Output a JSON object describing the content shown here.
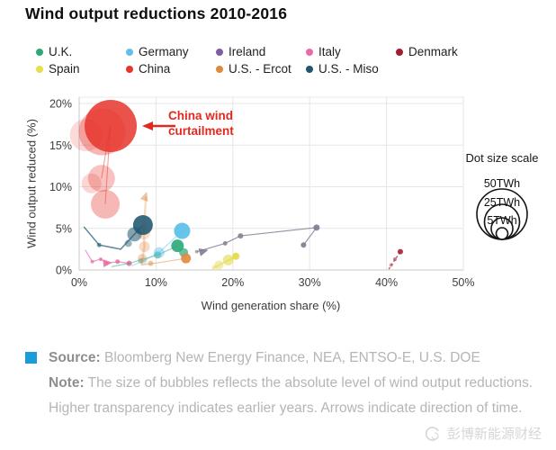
{
  "title": "Wind output reductions 2010-2016",
  "legend": {
    "rows": [
      [
        {
          "label": "U.K.",
          "color": "#2fa876"
        },
        {
          "label": "Germany",
          "color": "#62c1e5"
        },
        {
          "label": "Ireland",
          "color": "#7d5fa0"
        },
        {
          "label": "Italy",
          "color": "#e56daa"
        },
        {
          "label": "Denmark",
          "color": "#9e1f2e"
        }
      ],
      [
        {
          "label": "Spain",
          "color": "#e6df4a"
        },
        {
          "label": "China",
          "color": "#e6352b"
        },
        {
          "label": "U.S. - Ercot",
          "color": "#e0883e"
        },
        {
          "label": "U.S. - Miso",
          "color": "#20566e"
        }
      ]
    ]
  },
  "chart_data": {
    "type": "scatter",
    "xlabel": "Wind generation share (%)",
    "ylabel": "Wind output reduced (%)",
    "xlim": [
      0,
      50
    ],
    "ylim": [
      0,
      20
    ],
    "grid": true,
    "x_ticks": [
      {
        "v": 0,
        "label": "0%"
      },
      {
        "v": 10,
        "label": "10%"
      },
      {
        "v": 20,
        "label": "20%"
      },
      {
        "v": 30,
        "label": "30%"
      },
      {
        "v": 40,
        "label": "40%"
      },
      {
        "v": 50,
        "label": "50%"
      }
    ],
    "y_ticks": [
      {
        "v": 0,
        "label": "0%"
      },
      {
        "v": 5,
        "label": "5%"
      },
      {
        "v": 10,
        "label": "10%"
      },
      {
        "v": 15,
        "label": "15%"
      },
      {
        "v": 20,
        "label": "20%"
      }
    ],
    "annotation": {
      "line1": "China wind",
      "line2": "curtailment",
      "color": "#e02a20"
    },
    "size_legend": {
      "title": "Dot size scale",
      "entries": [
        {
          "label": "50TWh",
          "r": 28
        },
        {
          "label": "25TWh",
          "r": 19.5
        },
        {
          "label": "5TWh",
          "r": 12
        }
      ],
      "dot_r": 6.5
    },
    "series": [
      {
        "name": "Italy",
        "color": "#e56fa5",
        "trails": [
          {
            "pts": [
              [
                0.8,
                2.4
              ],
              [
                1.7,
                1.0
              ],
              [
                2.8,
                1.3
              ],
              [
                3.6,
                0.8
              ],
              [
                5.0,
                1.0
              ],
              [
                6.5,
                0.8
              ]
            ],
            "w": 1.2,
            "o": 0.7
          }
        ],
        "bubbles": [
          {
            "x": 1.7,
            "y": 1.0,
            "r": 2,
            "o": 0.7
          },
          {
            "x": 2.8,
            "y": 1.3,
            "r": 2,
            "o": 0.75
          },
          {
            "x": 3.6,
            "y": 0.8,
            "r": 2,
            "o": 0.8
          },
          {
            "x": 5.0,
            "y": 1.0,
            "r": 2.5,
            "o": 0.85
          },
          {
            "x": 6.5,
            "y": 0.8,
            "r": 3,
            "o": 0.9
          }
        ],
        "arrows": [
          {
            "x": 4.3,
            "y": 0.9,
            "a": -5,
            "o": 0.85
          }
        ]
      },
      {
        "name": "U.K.",
        "color": "#2aa878",
        "trails": [
          {
            "pts": [
              [
                4.2,
                0.4
              ],
              [
                6.5,
                0.8
              ],
              [
                10.2,
                1.8
              ],
              [
                12.8,
                2.9
              ]
            ],
            "w": 1.2,
            "o": 0.5
          }
        ],
        "bubbles": [
          {
            "x": 12.8,
            "y": 2.9,
            "r": 7,
            "o": 0.9
          },
          {
            "x": 13.6,
            "y": 2.1,
            "r": 5,
            "o": 0.7
          },
          {
            "x": 10.2,
            "y": 1.8,
            "r": 4,
            "o": 0.55
          },
          {
            "x": 8.0,
            "y": 1.1,
            "r": 3,
            "o": 0.4
          }
        ]
      },
      {
        "name": "Germany",
        "color": "#58bfe8",
        "trails": [
          {
            "pts": [
              [
                6.8,
                0.5
              ],
              [
                8.4,
                1.1
              ],
              [
                10.4,
                2.1
              ],
              [
                13.4,
                4.7
              ]
            ],
            "w": 1.2,
            "o": 0.45
          }
        ],
        "bubbles": [
          {
            "x": 13.4,
            "y": 4.7,
            "r": 9,
            "o": 0.9
          },
          {
            "x": 10.4,
            "y": 2.1,
            "r": 6,
            "o": 0.45
          },
          {
            "x": 8.4,
            "y": 1.1,
            "r": 4,
            "o": 0.3
          }
        ]
      },
      {
        "name": "Spain",
        "color": "#e2da48",
        "trails": [
          {
            "pts": [
              [
                17.4,
                0.2
              ],
              [
                20.5,
                1.7
              ]
            ],
            "w": 2,
            "o": 0.5
          }
        ],
        "bubbles": [
          {
            "x": 17.6,
            "y": 0.3,
            "r": 3,
            "o": 0.35
          },
          {
            "x": 18.2,
            "y": 0.6,
            "r": 5,
            "o": 0.45
          },
          {
            "x": 19.4,
            "y": 1.2,
            "r": 6,
            "o": 0.6
          },
          {
            "x": 20.4,
            "y": 1.65,
            "r": 4,
            "o": 0.9
          }
        ]
      },
      {
        "name": "Ireland",
        "color": "#837a90",
        "trails": [
          {
            "pts": [
              [
                15.3,
                2.2
              ],
              [
                19.0,
                3.2
              ],
              [
                21.0,
                4.1
              ],
              [
                30.9,
                5.1
              ],
              [
                29.2,
                3.0
              ]
            ],
            "w": 1.2,
            "o": 0.8
          }
        ],
        "bubbles": [
          {
            "x": 15.3,
            "y": 2.2,
            "r": 2,
            "o": 0.6
          },
          {
            "x": 19.0,
            "y": 3.2,
            "r": 2.5,
            "o": 0.8
          },
          {
            "x": 21.0,
            "y": 4.1,
            "r": 3,
            "o": 0.85
          },
          {
            "x": 30.9,
            "y": 5.1,
            "r": 3.5,
            "o": 0.9
          },
          {
            "x": 29.2,
            "y": 3.0,
            "r": 3,
            "o": 0.9
          }
        ],
        "arrows": [
          {
            "x": 16.8,
            "y": 2.4,
            "a": -15,
            "o": 0.9
          }
        ]
      },
      {
        "name": "Denmark",
        "color": "#a32433",
        "trails": [
          {
            "pts": [
              [
                40.3,
                0.1
              ],
              [
                41.8,
                2.2
              ]
            ],
            "w": 1.5,
            "o": 0.7,
            "dash": "2.5,2.5"
          }
        ],
        "bubbles": [
          {
            "x": 40.6,
            "y": 0.6,
            "r": 2,
            "o": 0.45
          },
          {
            "x": 41.1,
            "y": 1.3,
            "r": 2,
            "o": 0.6
          },
          {
            "x": 41.8,
            "y": 2.2,
            "r": 3,
            "o": 0.9
          }
        ]
      },
      {
        "name": "U.S. - Ercot",
        "color": "#e0883e",
        "trails": [
          {
            "pts": [
              [
                8.1,
                0.6
              ],
              [
                8.5,
                2.8
              ],
              [
                8.4,
                4.5
              ],
              [
                8.7,
                8.8
              ]
            ],
            "w": 2.5,
            "o": 0.3
          },
          {
            "pts": [
              [
                8.1,
                0.6
              ],
              [
                10.5,
                0.9
              ],
              [
                13.9,
                1.4
              ]
            ],
            "w": 1.2,
            "o": 0.5
          }
        ],
        "bubbles": [
          {
            "x": 8.4,
            "y": 4.4,
            "r": 7,
            "o": 0.25
          },
          {
            "x": 8.5,
            "y": 2.8,
            "r": 6,
            "o": 0.3
          },
          {
            "x": 8.2,
            "y": 1.4,
            "r": 5,
            "o": 0.35
          },
          {
            "x": 9.3,
            "y": 0.8,
            "r": 3,
            "o": 0.5
          },
          {
            "x": 13.9,
            "y": 1.4,
            "r": 5.5,
            "o": 0.9
          }
        ],
        "arrows": [
          {
            "x": 8.8,
            "y": 9.4,
            "a": -72,
            "o": 0.5
          }
        ]
      },
      {
        "name": "U.S. - Miso",
        "color": "#20566e",
        "trails": [
          {
            "pts": [
              [
                0.6,
                5.2
              ],
              [
                2.6,
                3.0
              ],
              [
                5.4,
                2.5
              ],
              [
                7.2,
                4.3
              ],
              [
                8.3,
                5.4
              ]
            ],
            "w": 1.5,
            "o": 0.7
          }
        ],
        "bubbles": [
          {
            "x": 2.6,
            "y": 3.0,
            "r": 2.5,
            "o": 0.6
          },
          {
            "x": 6.4,
            "y": 3.2,
            "r": 4,
            "o": 0.45
          },
          {
            "x": 7.2,
            "y": 4.3,
            "r": 8,
            "o": 0.55
          },
          {
            "x": 8.3,
            "y": 5.4,
            "r": 11,
            "o": 0.88
          }
        ]
      },
      {
        "name": "China",
        "color": "#e6352b",
        "trails": [
          {
            "pts": [
              [
                2.9,
                11.0
              ],
              [
                4.05,
                17.3
              ],
              [
                3.4,
                7.9
              ]
            ],
            "w": 1,
            "o": 0.5
          }
        ],
        "bubbles": [
          {
            "x": 0.9,
            "y": 16.2,
            "r": 18,
            "o": 0.18
          },
          {
            "x": 1.6,
            "y": 10.4,
            "r": 11,
            "o": 0.2
          },
          {
            "x": 3.0,
            "y": 16.6,
            "r": 26,
            "o": 0.35
          },
          {
            "x": 2.9,
            "y": 11.0,
            "r": 15,
            "o": 0.3
          },
          {
            "x": 3.4,
            "y": 7.9,
            "r": 16,
            "o": 0.35
          },
          {
            "x": 4.1,
            "y": 17.3,
            "r": 29,
            "o": 0.85
          }
        ]
      }
    ]
  },
  "footer": {
    "bullet_color": "#1a9cd8",
    "source_label": "Source:",
    "source_text": "Bloomberg New Energy Finance, NEA, ENTSO-E, U.S. DOE",
    "note_label": "Note:",
    "note_text": "The size of bubbles reflects the absolute level of wind output reductions. Higher transparency indicates earlier years. Arrows indicate direction of time.",
    "watermark": "彭博新能源财经"
  }
}
